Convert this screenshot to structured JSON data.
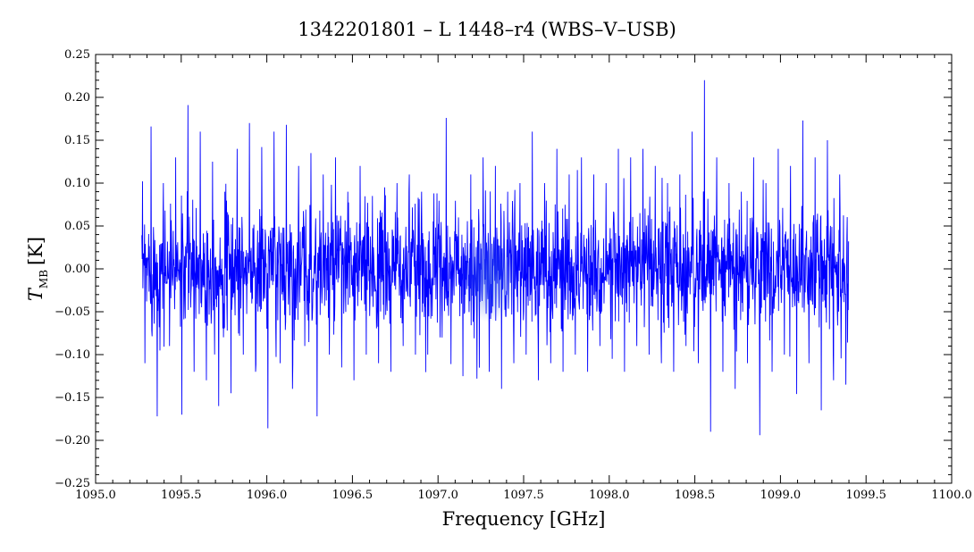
{
  "chart_data": {
    "type": "line",
    "title": "1342201801 – L 1448–r4 (WBS–V–USB)",
    "xlabel": "Frequency [GHz]",
    "ylabel_symbol": "T",
    "ylabel_subscript": "MB",
    "ylabel_unit": "[K]",
    "xlim": [
      1095.0,
      1100.0
    ],
    "ylim": [
      -0.25,
      0.25
    ],
    "x_ticks": [
      1095.0,
      1095.5,
      1096.0,
      1096.5,
      1097.0,
      1097.5,
      1098.0,
      1098.5,
      1099.0,
      1099.5,
      1100.0
    ],
    "x_tick_labels": [
      "1095.0",
      "1095.5",
      "1096.0",
      "1096.5",
      "1097.0",
      "1097.5",
      "1098.0",
      "1098.5",
      "1099.0",
      "1099.5",
      "1100.0"
    ],
    "y_ticks": [
      -0.25,
      -0.2,
      -0.15,
      -0.1,
      -0.05,
      0.0,
      0.05,
      0.1,
      0.15,
      0.2,
      0.25
    ],
    "y_tick_labels": [
      "−0.25",
      "−0.20",
      "−0.15",
      "−0.10",
      "−0.05",
      "0.00",
      "0.05",
      "0.10",
      "0.15",
      "0.20",
      "0.25"
    ],
    "grid": false,
    "legend": false,
    "series": [
      {
        "line_color": "#0000ff",
        "x_start": 1095.27,
        "x_end": 1099.4,
        "noise_rms": 0.05,
        "y": [
          -0.11,
          0.166,
          -0.172,
          0.1,
          -0.09,
          0.13,
          -0.17,
          0.191,
          -0.12,
          0.16,
          -0.13,
          0.125,
          -0.16,
          0.09,
          -0.145,
          0.14,
          -0.1,
          0.17,
          -0.12,
          0.142,
          -0.186,
          0.16,
          -0.11,
          0.168,
          -0.14,
          0.12,
          -0.09,
          0.135,
          -0.172,
          0.11,
          -0.1,
          0.13,
          -0.115,
          0.09,
          -0.13,
          0.12,
          -0.1,
          0.085,
          -0.11,
          0.095,
          -0.12,
          0.1,
          -0.09,
          0.11,
          -0.1,
          0.09,
          -0.1,
          0.088,
          -0.08,
          0.176,
          -0.04,
          0.06,
          -0.05,
          0.11,
          -0.128,
          0.13,
          -0.12,
          0.12,
          -0.14,
          0.09,
          -0.11,
          0.1,
          -0.1,
          0.16,
          -0.13,
          0.1,
          -0.11,
          0.14,
          -0.12,
          0.11,
          -0.1,
          0.13,
          -0.12,
          0.11,
          -0.09,
          0.1,
          -0.105,
          0.14,
          -0.12,
          0.13,
          -0.09,
          0.14,
          -0.1,
          0.12,
          -0.11,
          0.1,
          -0.12,
          0.11,
          -0.09,
          0.16,
          -0.11,
          0.22,
          -0.19,
          0.13,
          -0.12,
          0.1,
          -0.14,
          0.09,
          -0.11,
          0.13,
          -0.194,
          0.1,
          -0.12,
          0.14,
          -0.1,
          0.12,
          -0.146,
          0.173,
          -0.11,
          0.13,
          -0.165,
          0.15,
          -0.13,
          0.11,
          -0.135
        ]
      }
    ],
    "annotations": [
      {
        "type": "glow",
        "x": 1097.3,
        "y": 0.0,
        "color": "#3b67e6"
      }
    ]
  }
}
